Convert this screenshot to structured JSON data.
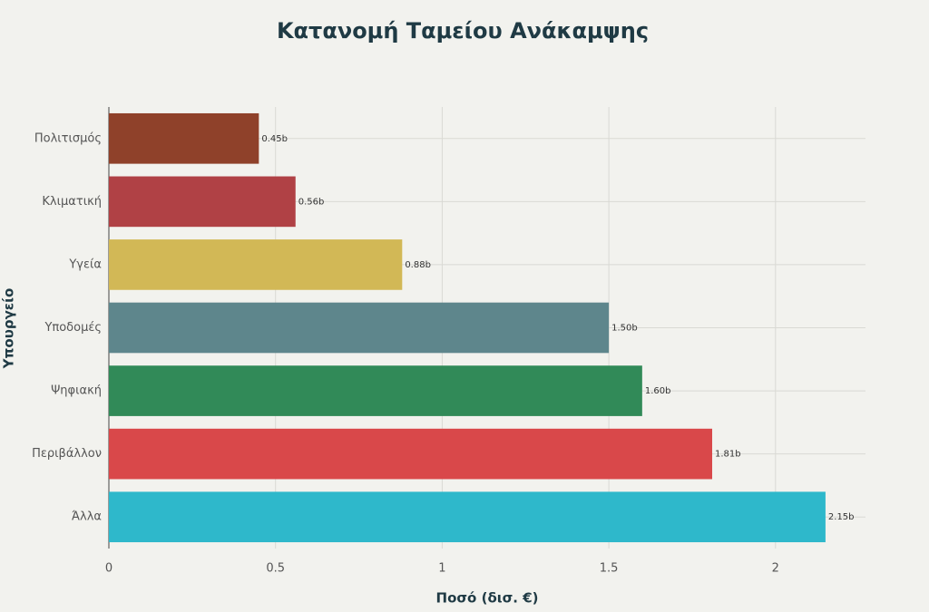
{
  "chart_data": {
    "type": "bar",
    "orientation": "horizontal",
    "title": "Κατανομή Ταμείου Ανάκαμψης",
    "xlabel": "Ποσό (δισ. €)",
    "ylabel": "Υπουργείο",
    "categories": [
      "Πολιτισμός",
      "Κλιματική",
      "Υγεία",
      "Υποδομές",
      "Ψηφιακή",
      "Περιβάλλον",
      "Άλλα"
    ],
    "values": [
      0.45,
      0.56,
      0.88,
      1.5,
      1.6,
      1.81,
      2.15
    ],
    "value_labels": [
      "0.45b",
      "0.56b",
      "0.88b",
      "1.50b",
      "1.60b",
      "1.81b",
      "2.15b"
    ],
    "colors": [
      "#8f412a",
      "#b04145",
      "#d2b856",
      "#5e868c",
      "#318a58",
      "#d9484a",
      "#2eb8cb"
    ],
    "xlim": [
      0,
      2.27
    ],
    "xticks": [
      0,
      0.5,
      1,
      1.5,
      2
    ],
    "grid": true
  }
}
